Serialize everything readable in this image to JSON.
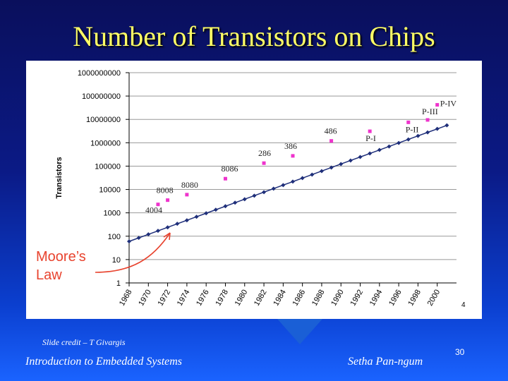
{
  "slide": {
    "title": "Number of Transistors on Chips",
    "credit": "Slide credit – T Givargis",
    "footer_left": "Introduction to Embedded Systems",
    "footer_center": "Setha Pan-ngum",
    "page_number": "30",
    "inner_page_mark": "4"
  },
  "colors": {
    "title": "#ffff66",
    "trend": "#1f2f7a",
    "chips": "#ee33cc",
    "annotation": "#e8432e"
  },
  "chart_data": {
    "type": "scatter",
    "title": "",
    "ylabel": "Transistors",
    "xlabel": "",
    "yscale": "log",
    "ylim": [
      1,
      1000000000
    ],
    "xlim": [
      1968,
      2002
    ],
    "grid": true,
    "y_ticks": [
      "1",
      "10",
      "100",
      "1000",
      "10000",
      "100000",
      "1000000",
      "10000000",
      "100000000",
      "1000000000"
    ],
    "x_ticks": [
      "1968",
      "1970",
      "1972",
      "1974",
      "1976",
      "1978",
      "1980",
      "1982",
      "1984",
      "1986",
      "1988",
      "1990",
      "1992",
      "1994",
      "1996",
      "1998",
      "2000"
    ],
    "annotation": {
      "text_line1": "Moore’s",
      "text_line2": "Law"
    },
    "series": [
      {
        "kind": "trend",
        "x": [
          1968,
          1969,
          1970,
          1971,
          1972,
          1973,
          1974,
          1975,
          1976,
          1977,
          1978,
          1979,
          1980,
          1981,
          1982,
          1983,
          1984,
          1985,
          1986,
          1987,
          1988,
          1989,
          1990,
          1991,
          1992,
          1993,
          1994,
          1995,
          1996,
          1997,
          1998,
          1999,
          2000,
          2001
        ],
        "y": [
          60,
          85,
          120,
          170,
          240,
          340,
          480,
          680,
          960,
          1360,
          1920,
          2720,
          3840,
          5430,
          7680,
          10900,
          15400,
          21700,
          30700,
          43400,
          61400,
          86900,
          123000,
          174000,
          246000,
          347000,
          491000,
          695000,
          983000,
          1390000,
          1970000,
          2780000,
          3930000,
          5560000
        ]
      },
      {
        "kind": "chips",
        "points": [
          {
            "label": "4004",
            "x": 1971,
            "y": 2300
          },
          {
            "label": "8008",
            "x": 1972,
            "y": 3500
          },
          {
            "label": "8080",
            "x": 1974,
            "y": 6000
          },
          {
            "label": "8086",
            "x": 1978,
            "y": 29000
          },
          {
            "label": "286",
            "x": 1982,
            "y": 134000
          },
          {
            "label": "386",
            "x": 1985,
            "y": 275000
          },
          {
            "label": "486",
            "x": 1989,
            "y": 1200000
          },
          {
            "label": "P-I",
            "x": 1993,
            "y": 3100000
          },
          {
            "label": "P-II",
            "x": 1997,
            "y": 7500000
          },
          {
            "label": "P-III",
            "x": 1999,
            "y": 9500000
          },
          {
            "label": "P-IV",
            "x": 2000,
            "y": 42000000
          }
        ]
      }
    ]
  }
}
